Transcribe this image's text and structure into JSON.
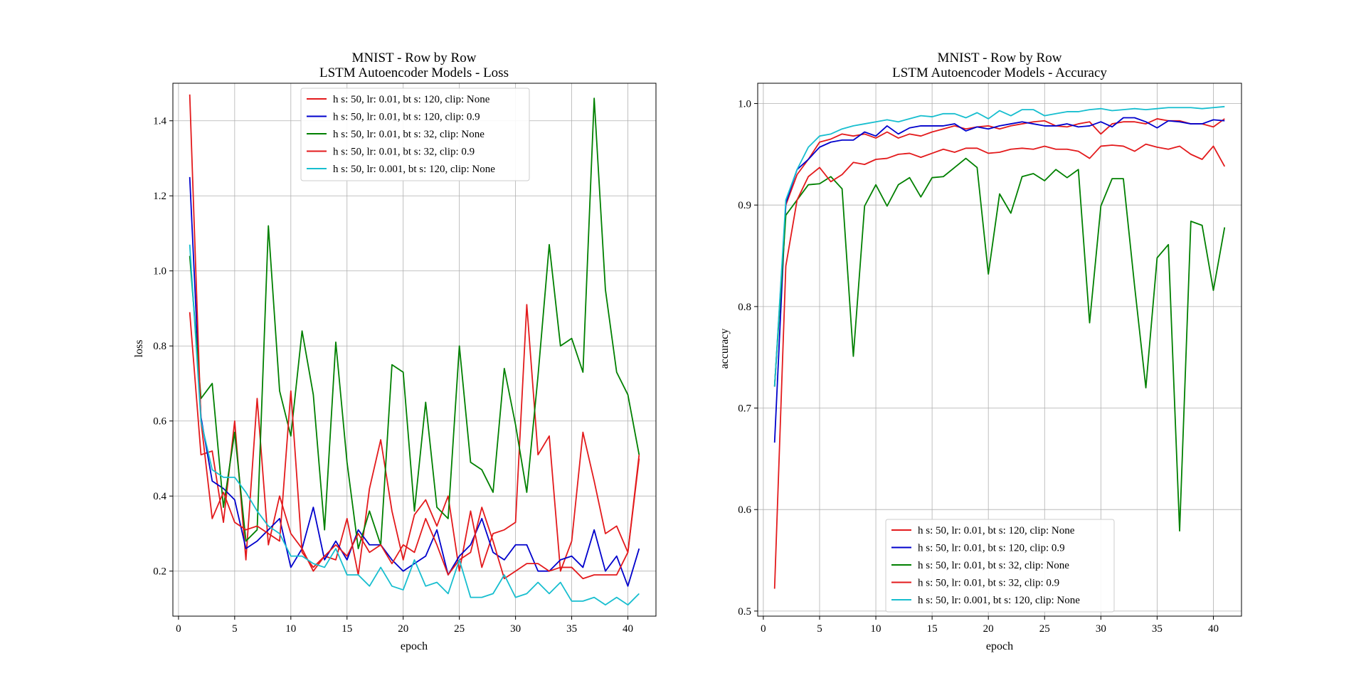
{
  "chart_data": [
    {
      "type": "line",
      "title_lines": [
        "MNIST - Row by Row",
        "LSTM Autoencoder Models - Loss"
      ],
      "xlabel": "epoch",
      "ylabel": "loss",
      "xlim": [
        -0.5,
        42.5
      ],
      "ylim": [
        0.08,
        1.5
      ],
      "xticks": [
        0,
        5,
        10,
        15,
        20,
        25,
        30,
        35,
        40
      ],
      "yticks": [
        0.2,
        0.4,
        0.6,
        0.8,
        1.0,
        1.2,
        1.4
      ],
      "ytick_labels": [
        "0.2",
        "0.4",
        "0.6",
        "0.8",
        "1.0",
        "1.2",
        "1.4"
      ],
      "grid": true,
      "legend_position": "top-center",
      "x": [
        1,
        2,
        3,
        4,
        5,
        6,
        7,
        8,
        9,
        10,
        11,
        12,
        13,
        14,
        15,
        16,
        17,
        18,
        19,
        20,
        21,
        22,
        23,
        24,
        25,
        26,
        27,
        28,
        29,
        30,
        31,
        32,
        33,
        34,
        35,
        36,
        37,
        38,
        39,
        40,
        41
      ],
      "series": [
        {
          "name": "h s: 50, lr: 0.01, bt s: 120, clip: None",
          "color": "#e31a1c",
          "values": [
            0.89,
            0.51,
            0.52,
            0.33,
            0.6,
            0.23,
            0.66,
            0.27,
            0.4,
            0.3,
            0.26,
            0.2,
            0.24,
            0.23,
            0.34,
            0.19,
            0.42,
            0.55,
            0.36,
            0.23,
            0.35,
            0.39,
            0.32,
            0.4,
            0.2,
            0.36,
            0.21,
            0.3,
            0.31,
            0.33,
            0.91,
            0.51,
            0.56,
            0.2,
            0.28,
            0.57,
            0.44,
            0.3,
            0.32,
            0.25,
            0.5
          ]
        },
        {
          "name": "h s: 50, lr: 0.01, bt s: 120, clip: 0.9",
          "color": "#0000cc",
          "values": [
            1.25,
            0.61,
            0.44,
            0.42,
            0.39,
            0.26,
            0.28,
            0.31,
            0.34,
            0.21,
            0.26,
            0.37,
            0.23,
            0.28,
            0.23,
            0.31,
            0.27,
            0.27,
            0.23,
            0.2,
            0.22,
            0.24,
            0.31,
            0.19,
            0.24,
            0.27,
            0.34,
            0.25,
            0.23,
            0.27,
            0.27,
            0.2,
            0.2,
            0.23,
            0.24,
            0.21,
            0.31,
            0.2,
            0.24,
            0.16,
            0.26
          ]
        },
        {
          "name": "h s: 50, lr: 0.01, bt s: 32, clip: None",
          "color": "#008000",
          "values": [
            1.04,
            0.66,
            0.7,
            0.37,
            0.57,
            0.28,
            0.31,
            1.12,
            0.68,
            0.56,
            0.84,
            0.67,
            0.31,
            0.81,
            0.49,
            0.26,
            0.36,
            0.27,
            0.75,
            0.73,
            0.36,
            0.65,
            0.37,
            0.34,
            0.8,
            0.49,
            0.47,
            0.41,
            0.74,
            0.59,
            0.41,
            0.72,
            1.07,
            0.8,
            0.82,
            0.73,
            1.46,
            0.95,
            0.73,
            0.67,
            0.51
          ]
        },
        {
          "name": "h s: 50, lr: 0.01, bt s: 32, clip: 0.9",
          "color": "#e31a1c",
          "values": [
            1.47,
            0.6,
            0.34,
            0.41,
            0.33,
            0.31,
            0.32,
            0.3,
            0.28,
            0.68,
            0.25,
            0.21,
            0.24,
            0.27,
            0.24,
            0.3,
            0.25,
            0.27,
            0.22,
            0.27,
            0.25,
            0.34,
            0.27,
            0.19,
            0.23,
            0.25,
            0.37,
            0.28,
            0.18,
            0.2,
            0.22,
            0.22,
            0.2,
            0.21,
            0.21,
            0.18,
            0.19,
            0.19,
            0.19,
            0.25,
            0.51
          ]
        },
        {
          "name": "h s: 50, lr: 0.001, bt s: 120, clip: None",
          "color": "#17becf",
          "values": [
            1.07,
            0.6,
            0.47,
            0.45,
            0.45,
            0.41,
            0.36,
            0.32,
            0.3,
            0.24,
            0.24,
            0.22,
            0.21,
            0.26,
            0.19,
            0.19,
            0.16,
            0.21,
            0.16,
            0.15,
            0.23,
            0.16,
            0.17,
            0.14,
            0.23,
            0.13,
            0.13,
            0.14,
            0.19,
            0.13,
            0.14,
            0.17,
            0.14,
            0.17,
            0.12,
            0.12,
            0.13,
            0.11,
            0.13,
            0.11,
            0.14
          ]
        }
      ]
    },
    {
      "type": "line",
      "title_lines": [
        "MNIST - Row by Row",
        "LSTM Autoencoder Models - Accuracy"
      ],
      "xlabel": "epoch",
      "ylabel": "accuracy",
      "xlim": [
        -0.5,
        42.5
      ],
      "ylim": [
        0.495,
        1.02
      ],
      "xticks": [
        0,
        5,
        10,
        15,
        20,
        25,
        30,
        35,
        40
      ],
      "yticks": [
        0.5,
        0.6,
        0.7,
        0.8,
        0.9,
        1.0
      ],
      "ytick_labels": [
        "0.5",
        "0.6",
        "0.7",
        "0.8",
        "0.9",
        "1.0"
      ],
      "grid": true,
      "legend_position": "bottom-center",
      "x": [
        1,
        2,
        3,
        4,
        5,
        6,
        7,
        8,
        9,
        10,
        11,
        12,
        13,
        14,
        15,
        16,
        17,
        18,
        19,
        20,
        21,
        22,
        23,
        24,
        25,
        26,
        27,
        28,
        29,
        30,
        31,
        32,
        33,
        34,
        35,
        36,
        37,
        38,
        39,
        40,
        41
      ],
      "series": [
        {
          "name": "h s: 50, lr: 0.01, bt s: 120, clip: None",
          "color": "#e31a1c",
          "values": [
            0.721,
            0.9,
            0.93,
            0.945,
            0.962,
            0.965,
            0.97,
            0.968,
            0.97,
            0.966,
            0.972,
            0.966,
            0.97,
            0.968,
            0.972,
            0.975,
            0.978,
            0.975,
            0.977,
            0.978,
            0.975,
            0.978,
            0.98,
            0.982,
            0.983,
            0.978,
            0.977,
            0.98,
            0.982,
            0.97,
            0.98,
            0.982,
            0.982,
            0.98,
            0.985,
            0.983,
            0.983,
            0.98,
            0.98,
            0.977,
            0.985
          ]
        },
        {
          "name": "h s: 50, lr: 0.01, bt s: 120, clip: 0.9",
          "color": "#0000cc",
          "values": [
            0.666,
            0.902,
            0.935,
            0.945,
            0.957,
            0.962,
            0.964,
            0.964,
            0.972,
            0.968,
            0.978,
            0.97,
            0.976,
            0.978,
            0.978,
            0.978,
            0.98,
            0.973,
            0.977,
            0.975,
            0.978,
            0.98,
            0.982,
            0.98,
            0.978,
            0.978,
            0.98,
            0.977,
            0.978,
            0.982,
            0.977,
            0.986,
            0.986,
            0.982,
            0.976,
            0.983,
            0.982,
            0.98,
            0.98,
            0.984,
            0.983
          ]
        },
        {
          "name": "h s: 50, lr: 0.01, bt s: 32, clip: None",
          "color": "#008000",
          "values": [
            0.722,
            0.89,
            0.905,
            0.92,
            0.921,
            0.928,
            0.916,
            0.751,
            0.899,
            0.92,
            0.899,
            0.92,
            0.927,
            0.908,
            0.927,
            0.928,
            0.937,
            0.946,
            0.937,
            0.832,
            0.911,
            0.892,
            0.928,
            0.931,
            0.924,
            0.935,
            0.927,
            0.935,
            0.784,
            0.899,
            0.926,
            0.926,
            0.82,
            0.72,
            0.848,
            0.861,
            0.579,
            0.884,
            0.88,
            0.816,
            0.878
          ]
        },
        {
          "name": "h s: 50, lr: 0.01, bt s: 32, clip: 0.9",
          "color": "#e31a1c",
          "values": [
            0.522,
            0.84,
            0.905,
            0.928,
            0.937,
            0.923,
            0.93,
            0.942,
            0.94,
            0.945,
            0.946,
            0.95,
            0.951,
            0.947,
            0.951,
            0.955,
            0.952,
            0.956,
            0.956,
            0.951,
            0.952,
            0.955,
            0.956,
            0.955,
            0.958,
            0.955,
            0.955,
            0.953,
            0.946,
            0.958,
            0.959,
            0.958,
            0.953,
            0.96,
            0.957,
            0.955,
            0.958,
            0.95,
            0.945,
            0.958,
            0.938
          ]
        },
        {
          "name": "h s: 50, lr: 0.001, bt s: 120, clip: None",
          "color": "#17becf",
          "values": [
            0.721,
            0.905,
            0.935,
            0.957,
            0.968,
            0.97,
            0.975,
            0.978,
            0.98,
            0.982,
            0.984,
            0.982,
            0.985,
            0.988,
            0.987,
            0.99,
            0.99,
            0.986,
            0.991,
            0.985,
            0.993,
            0.988,
            0.994,
            0.994,
            0.988,
            0.99,
            0.992,
            0.992,
            0.994,
            0.995,
            0.993,
            0.994,
            0.995,
            0.994,
            0.995,
            0.996,
            0.996,
            0.996,
            0.995,
            0.996,
            0.997
          ]
        }
      ]
    }
  ]
}
